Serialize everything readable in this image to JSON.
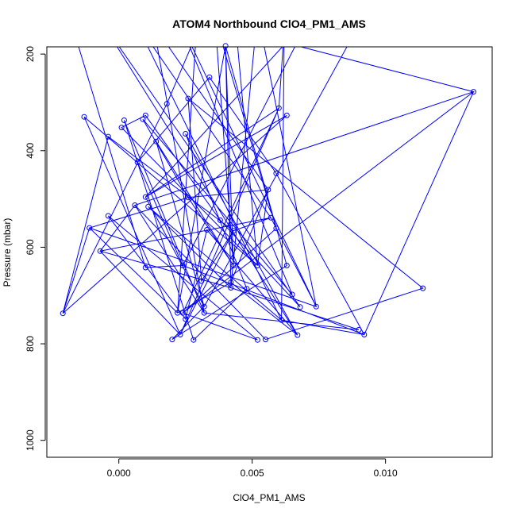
{
  "chart_data": {
    "type": "line",
    "title": "ATOM4 Northbound ClO4_PM1_AMS",
    "xlabel": "ClO4_PM1_AMS",
    "ylabel": "Pressure (mbar)",
    "xlim": [
      -0.0027,
      0.014
    ],
    "ylim": [
      1035,
      185
    ],
    "y_reversed": true,
    "grid": false,
    "x_ticks": [
      {
        "value": 0.0,
        "label": "0.000"
      },
      {
        "value": 0.005,
        "label": "0.005"
      },
      {
        "value": 0.01,
        "label": "0.010"
      }
    ],
    "y_ticks": [
      {
        "value": 200,
        "label": "200"
      },
      {
        "value": 400,
        "label": "400"
      },
      {
        "value": 600,
        "label": "600"
      },
      {
        "value": 800,
        "label": "800"
      },
      {
        "value": 1000,
        "label": "1000"
      }
    ],
    "series": [
      {
        "color": "#0000ff",
        "marker": "open-circle",
        "points": [
          {
            "x": -0.0013,
            "y": 330
          },
          {
            "x": 0.004,
            "y": 183
          },
          {
            "x": 0.006,
            "y": 312
          },
          {
            "x": 0.0034,
            "y": 248
          },
          {
            "x": 0.0063,
            "y": 327
          },
          {
            "x": 0.0026,
            "y": 292
          },
          {
            "x": 0.0018,
            "y": 303
          },
          {
            "x": 0.001,
            "y": 327
          },
          {
            "x": 0.0002,
            "y": 337
          },
          {
            "x": 0.0009,
            "y": 335
          },
          {
            "x": 0.0001,
            "y": 352
          },
          {
            "x": 0.0025,
            "y": 365
          },
          {
            "x": -0.0004,
            "y": 371
          },
          {
            "x": 0.0014,
            "y": 381
          },
          {
            "x": 0.0007,
            "y": 424
          },
          {
            "x": 0.0059,
            "y": 447
          },
          {
            "x": 0.001,
            "y": 496
          },
          {
            "x": 0.0011,
            "y": 516
          },
          {
            "x": 0.0026,
            "y": 497
          },
          {
            "x": 0.0056,
            "y": 481
          },
          {
            "x": 0.0006,
            "y": 513
          },
          {
            "x": -0.0004,
            "y": 535
          },
          {
            "x": 0.0057,
            "y": 539
          },
          {
            "x": 0.0038,
            "y": 544
          },
          {
            "x": 0.0133,
            "y": 278
          },
          {
            "x": -0.0011,
            "y": 560
          },
          {
            "x": 0.0033,
            "y": 564
          },
          {
            "x": 0.0059,
            "y": 561
          },
          {
            "x": 0.0043,
            "y": 566
          },
          {
            "x": -0.0007,
            "y": 608
          },
          {
            "x": 0.0024,
            "y": 638
          },
          {
            "x": 0.0043,
            "y": 638
          },
          {
            "x": 0.0063,
            "y": 638
          },
          {
            "x": 0.001,
            "y": 642
          },
          {
            "x": 0.0052,
            "y": 638
          },
          {
            "x": 0.0031,
            "y": 670
          },
          {
            "x": 0.0042,
            "y": 673
          },
          {
            "x": 0.0042,
            "y": 684
          },
          {
            "x": 0.0048,
            "y": 686
          },
          {
            "x": 0.0114,
            "y": 685
          },
          {
            "x": 0.0065,
            "y": 698
          },
          {
            "x": 0.0068,
            "y": 724
          },
          {
            "x": 0.0074,
            "y": 723
          },
          {
            "x": 0.0032,
            "y": 723
          },
          {
            "x": 0.0032,
            "y": 736
          },
          {
            "x": 0.0022,
            "y": 736
          },
          {
            "x": 0.0024,
            "y": 736
          },
          {
            "x": -0.0021,
            "y": 737
          },
          {
            "x": 0.0025,
            "y": 749
          },
          {
            "x": 0.0061,
            "y": 751
          },
          {
            "x": 0.009,
            "y": 771
          },
          {
            "x": 0.0092,
            "y": 781
          },
          {
            "x": 0.0067,
            "y": 782
          },
          {
            "x": 0.0023,
            "y": 781
          },
          {
            "x": 0.002,
            "y": 791
          },
          {
            "x": 0.0028,
            "y": 792
          },
          {
            "x": 0.0052,
            "y": 792
          },
          {
            "x": 0.0055,
            "y": 791
          }
        ],
        "off_plot_points": [
          {
            "x": -0.0017,
            "y": 150
          },
          {
            "x": -0.0008,
            "y": 120
          },
          {
            "x": 0.0006,
            "y": 130
          },
          {
            "x": 0.0013,
            "y": 140
          },
          {
            "x": 0.0021,
            "y": 110
          },
          {
            "x": 0.0029,
            "y": 160
          },
          {
            "x": 0.0036,
            "y": 125
          },
          {
            "x": 0.0044,
            "y": 150
          },
          {
            "x": 0.0052,
            "y": 115
          },
          {
            "x": 0.0062,
            "y": 150
          },
          {
            "x": 0.0072,
            "y": 120
          },
          {
            "x": 0.0089,
            "y": 150
          }
        ],
        "path_order": [
          "o0",
          33,
          30,
          14,
          3,
          15,
          51,
          24,
          46,
          56,
          21,
          48,
          26,
          52,
          "o1",
          41,
          23,
          7,
          10,
          34,
          0,
          53,
          29,
          22,
          "o2",
          49,
          17,
          37,
          50,
          44,
          8,
          55,
          38,
          11,
          52,
          36,
          19,
          "o3",
          44,
          20,
          57,
          39,
          5,
          35,
          28,
          12,
          47,
          25,
          42,
          "o4",
          40,
          9,
          18,
          31,
          13,
          43,
          54,
          32,
          1,
          45,
          "o5",
          6,
          47,
          4,
          16,
          2,
          46,
          27,
          "o6",
          31,
          1,
          36,
          45,
          25,
          18,
          19,
          34,
          "o7",
          24,
          20,
          29,
          37,
          "o8",
          42,
          22,
          28,
          53,
          2,
          "o9",
          49,
          51,
          30,
          "o10",
          16,
          43,
          "o11"
        ]
      }
    ]
  }
}
